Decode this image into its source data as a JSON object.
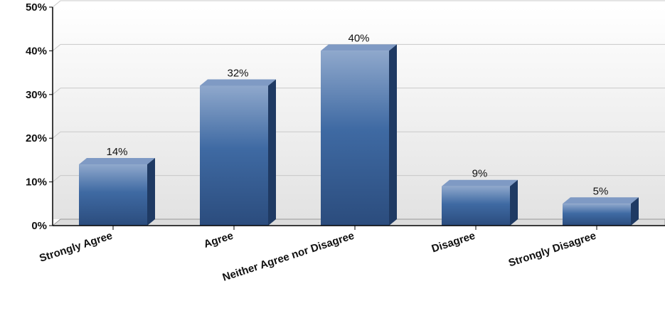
{
  "chart_data": {
    "type": "bar",
    "title": "",
    "xlabel": "",
    "ylabel": "",
    "categories": [
      "Strongly Agree",
      "Agree",
      "Neither Agree nor Disagree",
      "Disagree",
      "Strongly Disagree"
    ],
    "values": [
      14,
      32,
      40,
      9,
      5
    ],
    "data_labels": [
      "14%",
      "32%",
      "40%",
      "9%",
      "5%"
    ],
    "ylim": [
      0,
      50
    ],
    "yticks": [
      0,
      10,
      20,
      30,
      40,
      50
    ],
    "ytick_labels": [
      "0%",
      "10%",
      "20%",
      "30%",
      "40%",
      "50%"
    ],
    "grid": true,
    "legend": "none",
    "style": "3d-bar",
    "colors": {
      "bar_light": "#8fa8cc",
      "bar_mid": "#3f6aa3",
      "bar_dark": "#2b4c7d",
      "bar_top": "#7f9ac4",
      "bar_side": "#1f3a63",
      "plot_bg_top": "#ffffff",
      "plot_bg_bottom": "#e2e2e2",
      "grid": "#c8c8c8",
      "axis": "#000000"
    }
  }
}
